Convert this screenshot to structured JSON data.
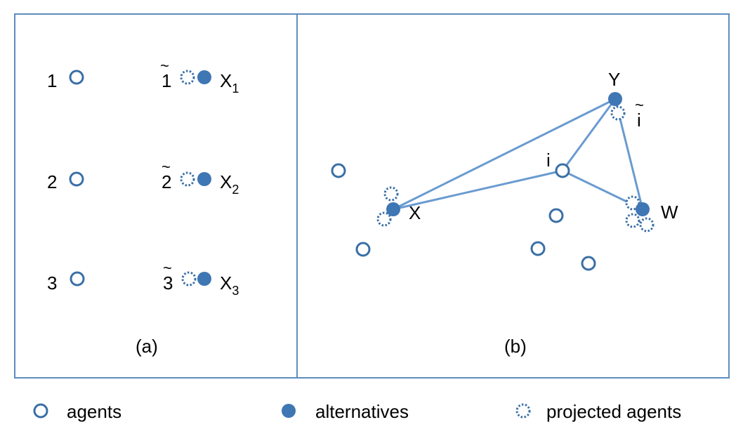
{
  "colors": {
    "stroke": "#3a6fa6",
    "fill": "#3f76b4",
    "edge": "#6a9bd0",
    "frame": "#5e8cbf"
  },
  "panel_a": {
    "caption": "(a)",
    "agents": [
      "1",
      "2",
      "3"
    ],
    "projected_tilde": "~",
    "projected": [
      "1",
      "2",
      "3"
    ],
    "alternative_base": "X",
    "alternative_subs": [
      "1",
      "2",
      "3"
    ]
  },
  "panel_b": {
    "caption": "(b)",
    "agent_i": "i",
    "projected_i_base": "i",
    "projected_i_tilde": "~",
    "alt_x": "X",
    "alt_y": "Y",
    "alt_w": "W"
  },
  "legend": {
    "agents": "agents",
    "alternatives": "alternatives",
    "projected": "projected agents"
  }
}
